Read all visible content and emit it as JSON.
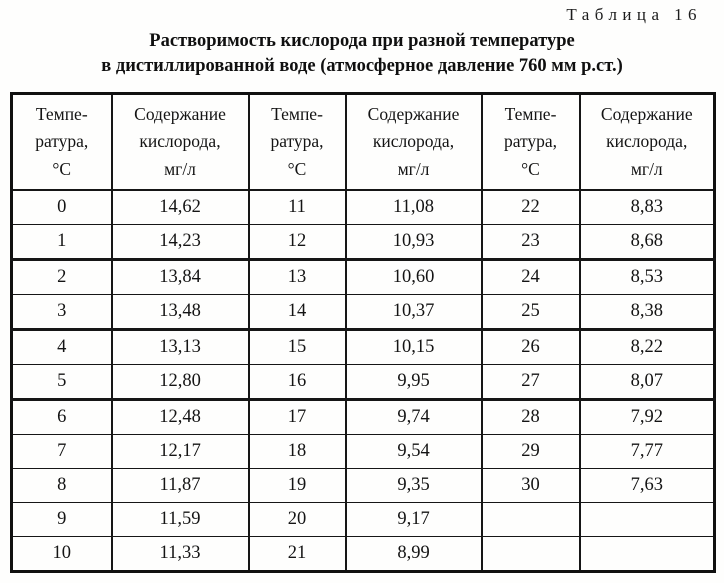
{
  "document": {
    "table_label": "Таблица 16",
    "title_line1": "Растворимость кислорода при разной температуре",
    "title_line2": "в дистиллированной воде (атмосферное давление 760 мм р.ст.)"
  },
  "table": {
    "headers": [
      {
        "name": "temperature-header",
        "lines": [
          "Темпе-",
          "ратура,",
          "°С"
        ]
      },
      {
        "name": "oxygen-content-header",
        "lines": [
          "Содержание",
          "кислорода,",
          "мг/л"
        ]
      },
      {
        "name": "temperature-header",
        "lines": [
          "Темпе-",
          "ратура,",
          "°С"
        ]
      },
      {
        "name": "oxygen-content-header",
        "lines": [
          "Содержание",
          "кислорода,",
          "мг/л"
        ]
      },
      {
        "name": "temperature-header",
        "lines": [
          "Темпе-",
          "ратура,",
          "°С"
        ]
      },
      {
        "name": "oxygen-content-header",
        "lines": [
          "Содержание",
          "кислорода,",
          "мг/л"
        ]
      }
    ],
    "rows": [
      [
        "0",
        "14,62",
        "11",
        "11,08",
        "22",
        "8,83"
      ],
      [
        "1",
        "14,23",
        "12",
        "10,93",
        "23",
        "8,68"
      ],
      [
        "2",
        "13,84",
        "13",
        "10,60",
        "24",
        "8,53"
      ],
      [
        "3",
        "13,48",
        "14",
        "10,37",
        "25",
        "8,38"
      ],
      [
        "4",
        "13,13",
        "15",
        "10,15",
        "26",
        "8,22"
      ],
      [
        "5",
        "12,80",
        "16",
        "9,95",
        "27",
        "8,07"
      ],
      [
        "6",
        "12,48",
        "17",
        "9,74",
        "28",
        "7,92"
      ],
      [
        "7",
        "12,17",
        "18",
        "9,54",
        "29",
        "7,77"
      ],
      [
        "8",
        "11,87",
        "19",
        "9,35",
        "30",
        "7,63"
      ],
      [
        "9",
        "11,59",
        "20",
        "9,17",
        "",
        ""
      ],
      [
        "10",
        "11,33",
        "21",
        "8,99",
        "",
        ""
      ]
    ]
  }
}
